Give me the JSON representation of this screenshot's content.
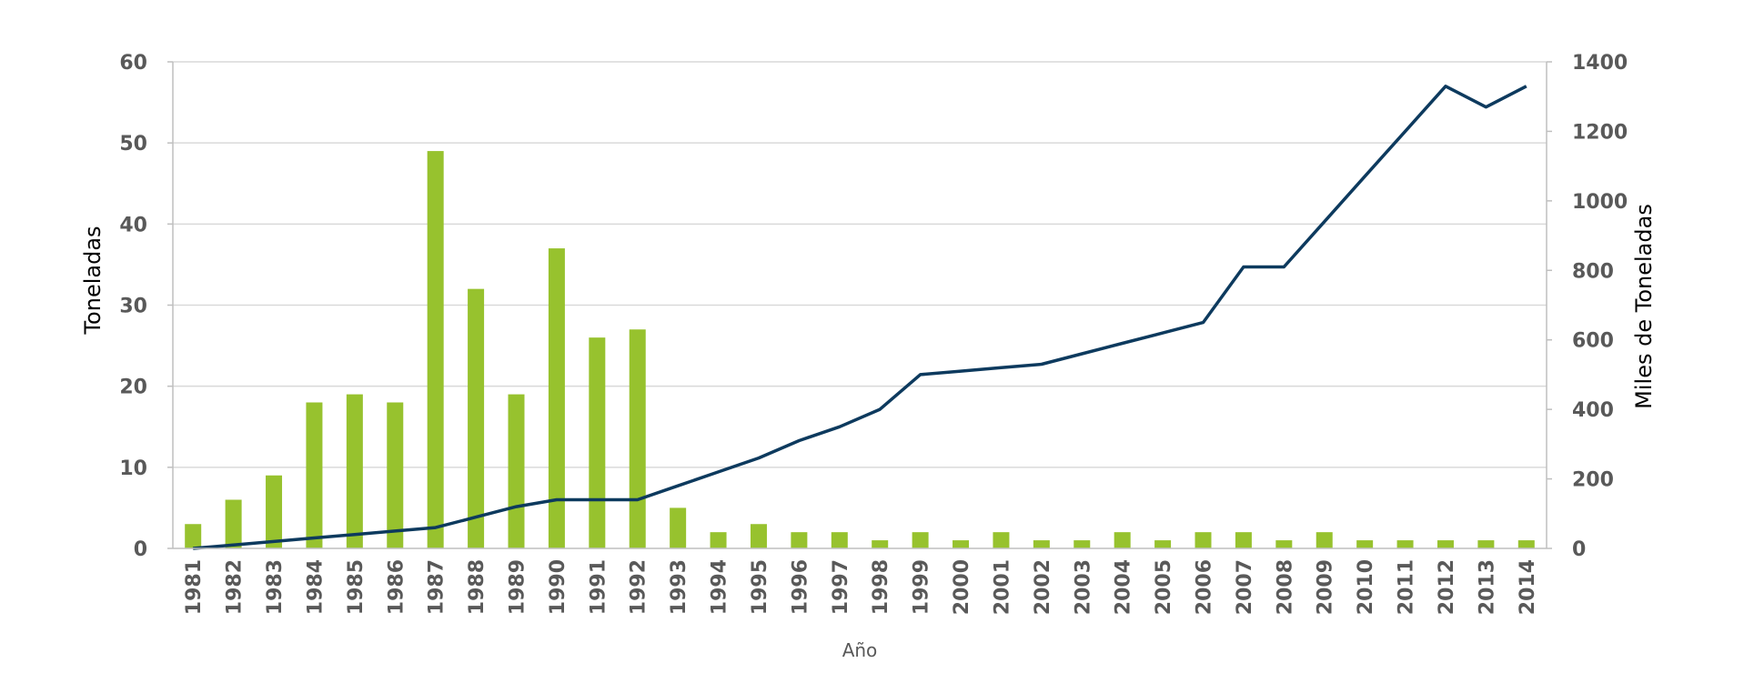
{
  "chart_data": {
    "type": "bar",
    "categories": [
      "1981",
      "1982",
      "1983",
      "1984",
      "1985",
      "1986",
      "1987",
      "1988",
      "1989",
      "1990",
      "1991",
      "1992",
      "1993",
      "1994",
      "1995",
      "1996",
      "1997",
      "1998",
      "1999",
      "2000",
      "2001",
      "2002",
      "2003",
      "2004",
      "2005",
      "2006",
      "2007",
      "2008",
      "2009",
      "2010",
      "2011",
      "2012",
      "2013",
      "2014"
    ],
    "series": [
      {
        "type": "bar",
        "axis": "left",
        "color": "#97c22e",
        "values": [
          3,
          6,
          9,
          18,
          19,
          18,
          49,
          32,
          19,
          37,
          26,
          27,
          5,
          2,
          3,
          2,
          2,
          1,
          2,
          1,
          2,
          1,
          1,
          2,
          1,
          2,
          2,
          1,
          2,
          1,
          1,
          1,
          1,
          1
        ]
      },
      {
        "type": "line",
        "axis": "right",
        "color": "#0d3a5e",
        "values": [
          0,
          10,
          20,
          30,
          40,
          50,
          60,
          90,
          120,
          140,
          140,
          140,
          180,
          220,
          260,
          310,
          350,
          400,
          500,
          510,
          520,
          530,
          560,
          590,
          620,
          650,
          810,
          810,
          940,
          1070,
          1200,
          1330,
          1270,
          1330
        ]
      }
    ],
    "xlabel": "Año",
    "ylabel": "Toneladas",
    "y2label": "Miles de Toneladas",
    "ylim": [
      0,
      60
    ],
    "y2lim": [
      0,
      1400
    ],
    "yticks": [
      "0",
      "10",
      "20",
      "30",
      "40",
      "50",
      "60"
    ],
    "y2ticks": [
      "0",
      "200",
      "400",
      "600",
      "800",
      "1000",
      "1200",
      "1400"
    ],
    "grid": true,
    "legend": "none"
  }
}
